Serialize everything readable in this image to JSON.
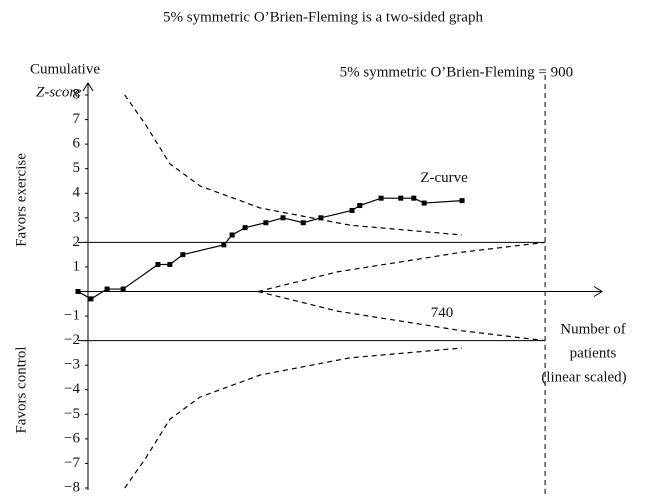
{
  "chart_data": {
    "type": "line",
    "title": "5% symmetric O’Brien-Fleming is a two-sided graph",
    "ylabel": [
      "Cumulative",
      "Z-score"
    ],
    "xlabel": [
      "Number of",
      "patients",
      "(linear scaled)"
    ],
    "side_labels": [
      "Favors exercise",
      "Favors control"
    ],
    "xlim": [
      0,
      1000
    ],
    "ylim": [
      -8,
      8
    ],
    "yticks": [
      {
        "value": -8,
        "label": "−8"
      },
      {
        "value": -7,
        "label": "−7"
      },
      {
        "value": -6,
        "label": "−6"
      },
      {
        "value": -5,
        "label": "−5"
      },
      {
        "value": -4,
        "label": "−4"
      },
      {
        "value": -3,
        "label": "−3"
      },
      {
        "value": -2,
        "label": "−2"
      },
      {
        "value": -1,
        "label": "−1"
      },
      1,
      2,
      3,
      4,
      5,
      6,
      7,
      8
    ],
    "hlines": [
      2,
      -2
    ],
    "vline": {
      "x": 900,
      "label": "5% symmetric O’Brien-Fleming = 900"
    },
    "x_annotation": {
      "x": 740,
      "label": "740"
    },
    "series": [
      {
        "name": "Z-curve",
        "color": "#000000",
        "style": "solid",
        "markers": true,
        "x": [
          0,
          25,
          56,
          87,
          154,
          177,
          202,
          281,
          297,
          322,
          362,
          395,
          434,
          468,
          528,
          543,
          584,
          622,
          647,
          667,
          740
        ],
        "values": [
          0,
          -0.3,
          0.1,
          0.1,
          1.1,
          1.1,
          1.5,
          1.9,
          2.3,
          2.6,
          2.8,
          3.0,
          2.8,
          3.0,
          3.3,
          3.5,
          3.8,
          3.8,
          3.8,
          3.6,
          3.7
        ]
      },
      {
        "color": "#000000",
        "style": "dashed",
        "markers": false,
        "x": [
          90,
          130,
          177,
          235,
          351,
          524,
          740
        ],
        "values": [
          8,
          6.8,
          5.2,
          4.3,
          3.4,
          2.7,
          2.3
        ]
      },
      {
        "color": "#000000",
        "style": "dashed",
        "markers": false,
        "x": [
          90,
          130,
          177,
          235,
          351,
          524,
          740
        ],
        "values": [
          -8,
          -6.8,
          -5.2,
          -4.3,
          -3.4,
          -2.7,
          -2.3
        ]
      },
      {
        "color": "#000000",
        "style": "dashed",
        "markers": false,
        "x": [
          347,
          500,
          740,
          900
        ],
        "values": [
          0,
          0.8,
          1.6,
          2
        ]
      },
      {
        "color": "#000000",
        "style": "dashed",
        "markers": false,
        "x": [
          347,
          500,
          740,
          900
        ],
        "values": [
          0,
          -0.8,
          -1.6,
          -2
        ]
      }
    ]
  }
}
